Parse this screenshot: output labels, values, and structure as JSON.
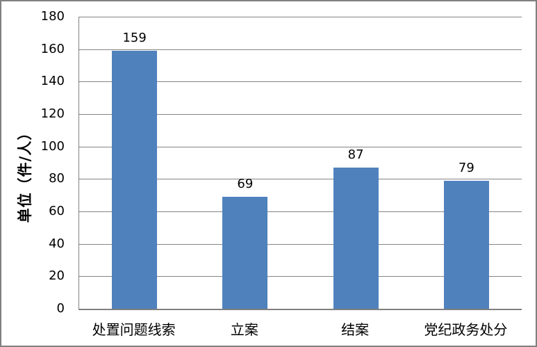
{
  "figure": {
    "background": "#FFFFFF",
    "border_color": "#808080"
  },
  "chart_data": {
    "type": "bar",
    "title": "",
    "categories": [
      "处置问题线索",
      "立案",
      "结案",
      "党纪政务处分"
    ],
    "values": [
      159,
      69,
      87,
      79
    ],
    "value_labels": [
      "159",
      "69",
      "87",
      "79"
    ],
    "xlabel": "",
    "ylabel": "单位（件/人）",
    "ylim": [
      0,
      180
    ],
    "ytick_step": 20,
    "yticks": [
      "0",
      "20",
      "40",
      "60",
      "80",
      "100",
      "120",
      "140",
      "160",
      "180"
    ],
    "grid": true,
    "legend": "none",
    "bar_color": "#4F81BD",
    "gridline_color": "#848484",
    "axis_color": "#808080",
    "text_color": "#000000"
  }
}
